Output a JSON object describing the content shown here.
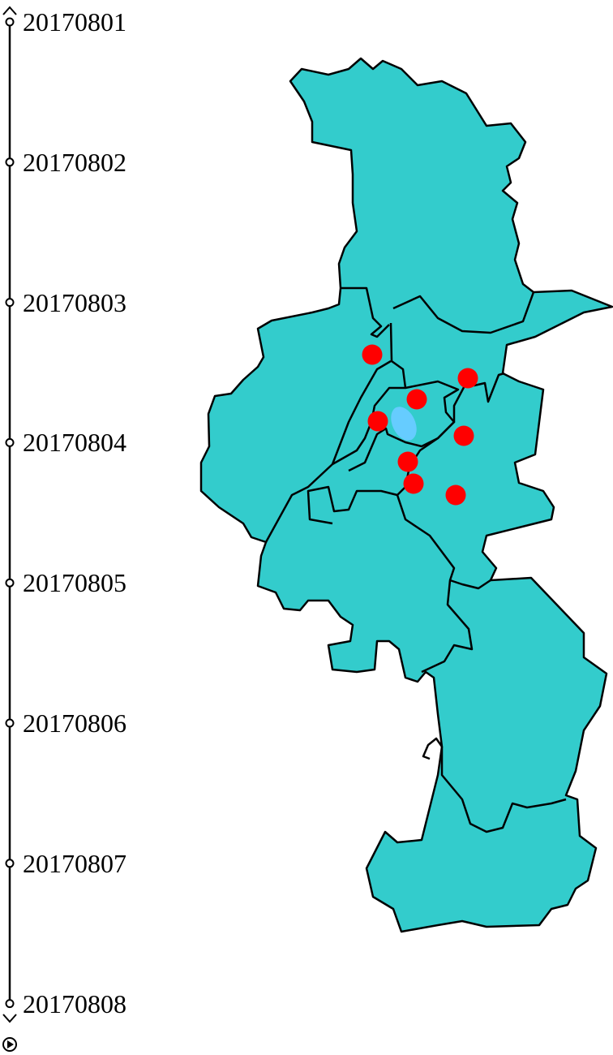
{
  "timeline": {
    "dates": [
      "20170801",
      "20170802",
      "20170803",
      "20170804",
      "20170805",
      "20170806",
      "20170807",
      "20170808"
    ],
    "controls": {
      "prev_icon": "chevron-up-icon",
      "next_icon": "chevron-down-icon",
      "play_icon": "play-icon"
    }
  },
  "map": {
    "region_fill": "#33cccc",
    "border_color": "#000000",
    "point_color": "#ff0000",
    "highlight_color": "#66ccff",
    "point_count": 8
  }
}
